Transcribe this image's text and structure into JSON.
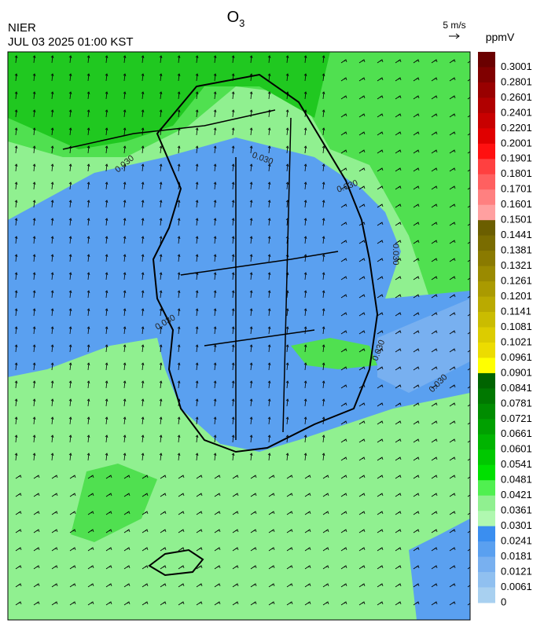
{
  "header": {
    "title": "O",
    "title_sub": "3",
    "agency": "NIER",
    "datetime": "JUL 03 2025 01:00 KST",
    "vector_scale": "5 m/s",
    "unit": "ppmV"
  },
  "colorbar": {
    "levels": [
      0.3001,
      0.2801,
      0.2601,
      0.2401,
      0.2201,
      0.2001,
      0.1901,
      0.1801,
      0.1701,
      0.1601,
      0.1501,
      0.1441,
      0.1381,
      0.1321,
      0.1261,
      0.1201,
      0.1141,
      0.1081,
      0.1021,
      0.0961,
      0.0901,
      0.0841,
      0.0781,
      0.0721,
      0.0661,
      0.0601,
      0.0541,
      0.0481,
      0.0421,
      0.0361,
      0.0301,
      0.0241,
      0.0181,
      0.0121,
      0.0061,
      0
    ],
    "colors": [
      "#6a0000",
      "#800000",
      "#990000",
      "#b00000",
      "#c80000",
      "#e00000",
      "#ff1010",
      "#ff4040",
      "#ff6060",
      "#ff8080",
      "#ffa0a0",
      "#6b5e00",
      "#7a6c00",
      "#8a7a00",
      "#9a8a00",
      "#aa9a00",
      "#baaa00",
      "#cabc00",
      "#dccc00",
      "#ecdc00",
      "#ffff00",
      "#006400",
      "#007800",
      "#008c00",
      "#00a000",
      "#00b400",
      "#00c800",
      "#00e000",
      "#50f050",
      "#90f090",
      "#b0f8b0",
      "#3a8ef0",
      "#5aa0f0",
      "#78b0f0",
      "#90c0f0",
      "#a8d0f0"
    ]
  },
  "contour_labels": [
    "0.030",
    "0.030",
    "0.030",
    "0.030",
    "0.030",
    "0.030",
    "0.030"
  ]
}
